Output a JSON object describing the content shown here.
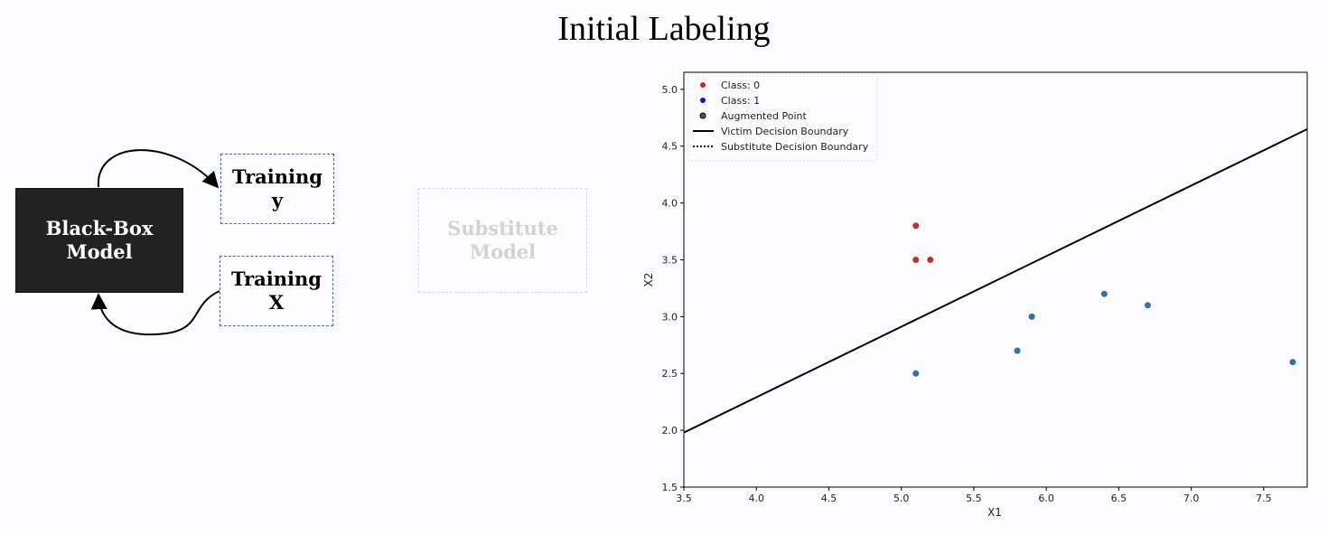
{
  "title": "Initial Labeling",
  "diagram": {
    "black_box_label": "Black-Box Model",
    "training_y_label": "Training y",
    "training_x_label": "Training X",
    "substitute_label": "Substitute Model"
  },
  "chart_data": {
    "type": "scatter",
    "title": "",
    "xlabel": "X1",
    "ylabel": "X2",
    "xlim": [
      3.5,
      7.8
    ],
    "ylim": [
      1.5,
      5.15
    ],
    "xticks": [
      3.5,
      4.0,
      4.5,
      5.0,
      5.5,
      6.0,
      6.5,
      7.0,
      7.5
    ],
    "yticks": [
      1.5,
      2.0,
      2.5,
      3.0,
      3.5,
      4.0,
      4.5,
      5.0
    ],
    "grid": false,
    "legend_position": "top-left",
    "legend": [
      {
        "label": "Class: 0",
        "kind": "marker",
        "color": "#d62020"
      },
      {
        "label": "Class: 1",
        "kind": "marker",
        "color": "#1010e0"
      },
      {
        "label": "Augmented Point",
        "kind": "marker",
        "color": "#555555"
      },
      {
        "label": "Victim Decision Boundary",
        "kind": "solid",
        "color": "#000000"
      },
      {
        "label": "Substitute Decision Boundary",
        "kind": "dotted",
        "color": "#000000"
      }
    ],
    "series": [
      {
        "name": "Class: 0",
        "color": "#c03030",
        "points": [
          [
            5.1,
            3.8
          ],
          [
            5.1,
            3.5
          ],
          [
            5.2,
            3.5
          ]
        ]
      },
      {
        "name": "Class: 1",
        "color": "#2e72b0",
        "points": [
          [
            5.1,
            2.5
          ],
          [
            5.8,
            2.7
          ],
          [
            5.9,
            3.0
          ],
          [
            6.4,
            3.2
          ],
          [
            6.7,
            3.1
          ],
          [
            7.7,
            2.6
          ]
        ]
      }
    ],
    "victim_boundary": [
      [
        3.5,
        1.98
      ],
      [
        7.8,
        4.65
      ]
    ]
  }
}
